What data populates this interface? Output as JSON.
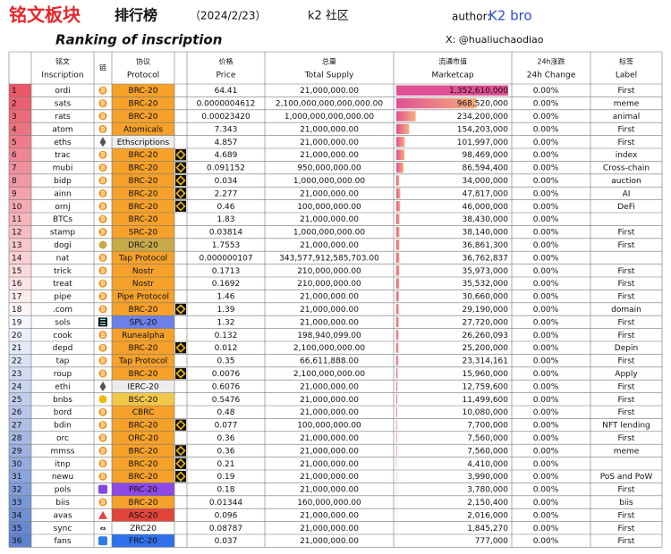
{
  "header": {
    "title": "铭文板块",
    "subtitle": "排行榜",
    "date": "（2024/2/23）",
    "community": "k2 社区",
    "author_label": "author:",
    "author": "K2 bro",
    "heading": "Ranking of inscription",
    "x": "X: @hualiuchaodiao"
  },
  "table": {
    "headers": [
      [
        "铭文",
        "Inscription"
      ],
      [
        "链"
      ],
      [
        "协议",
        "Protocol"
      ],
      [
        "价格",
        "Price"
      ],
      [
        "总量",
        "Total Supply"
      ],
      [
        "流通市值",
        "Marketcap"
      ],
      [
        "24h涨跌",
        "24h Change"
      ],
      [
        "标签",
        "Label"
      ]
    ],
    "rows": [
      [
        1,
        "ordi",
        "BRC-20",
        "64.41",
        "21,000,000.00",
        "1,352,610,000",
        "0.00%",
        "First"
      ],
      [
        2,
        "sats",
        "BRC-20",
        "0.0000004612",
        "2,100,000,000,000,000.00",
        "968,520,000",
        "0.00%",
        "meme"
      ],
      [
        3,
        "rats",
        "BRC-20",
        "0.00023420",
        "1,000,000,000,000.00",
        "234,200,000",
        "0.00%",
        "animal"
      ],
      [
        4,
        "atom",
        "Atomicals",
        "7.343",
        "21,000,000.00",
        "154,203,000",
        "0.00%",
        "First"
      ],
      [
        5,
        "eths",
        "Ethscriptions",
        "4.857",
        "21,000,000.00",
        "101,997,000",
        "0.00%",
        "First"
      ],
      [
        6,
        "trac",
        "BRC-20",
        "4.689",
        "21,000,000.00",
        "98,469,000",
        "0.00%",
        "index"
      ],
      [
        7,
        "mubi",
        "BRC-20",
        "0.091152",
        "950,000,000.00",
        "86,594,400",
        "0.00%",
        "Cross-chain"
      ],
      [
        8,
        "bidp",
        "BRC-20",
        "0.034",
        "1,000,000,000.00",
        "34,000,000",
        "0.00%",
        "auction"
      ],
      [
        9,
        "ainn",
        "BRC-20",
        "2.277",
        "21,000,000.00",
        "47,817,000",
        "0.00%",
        "AI"
      ],
      [
        10,
        "ornj",
        "BRC-20",
        "0.46",
        "100,000,000.00",
        "46,000,000",
        "0.00%",
        "DeFi"
      ],
      [
        11,
        "BTCs",
        "BRC-20",
        "1.83",
        "21,000,000.00",
        "38,430,000",
        "0.00%",
        null
      ],
      [
        12,
        "stamp",
        "SRC-20",
        "0.03814",
        "1,000,000,000.00",
        "38,140,000",
        "0.00%",
        "First"
      ],
      [
        13,
        "dogi",
        "DRC-20",
        "1.7553",
        "21,000,000.00",
        "36,861,300",
        "0.00%",
        "First"
      ],
      [
        14,
        "nat",
        "Tap Protocol",
        "0.000000107",
        "343,577,912,585,703.00",
        "36,762,837",
        "0.00%",
        null
      ],
      [
        15,
        "trick",
        "Nostr",
        "0.1713",
        "210,000,000.00",
        "35,973,000",
        "0.00%",
        "First"
      ],
      [
        16,
        "treat",
        "Nostr",
        "0.1692",
        "210,000,000.00",
        "35,532,000",
        "0.00%",
        "First"
      ],
      [
        17,
        "pipe",
        "Pipe Protocol",
        "1.46",
        "21,000,000.00",
        "30,660,000",
        "0.00%",
        "First"
      ],
      [
        18,
        ".com",
        "BRC-20",
        "1.39",
        "21,000,000.00",
        "29,190,000",
        "0.00%",
        "domain"
      ],
      [
        19,
        "sols",
        "SPL-20",
        "1.32",
        "21,000,000.00",
        "27,720,000",
        "0.00%",
        "First"
      ],
      [
        20,
        "cook",
        "Runealpha",
        "0.132",
        "198,940,099.00",
        "26,260,093",
        "0.00%",
        "First"
      ],
      [
        21,
        "depd",
        "BRC-20",
        "0.012",
        "2,100,000,000.00",
        "25,200,000",
        "0.00%",
        "Depin"
      ],
      [
        22,
        "tap",
        "Tap Protocol",
        "0.35",
        "66,611,888.00",
        "23,314,161",
        "0.00%",
        "First"
      ],
      [
        23,
        "roup",
        "BRC-20",
        "0.0076",
        "2,100,000,000.00",
        "15,960,000",
        "0.00%",
        "Apply"
      ],
      [
        24,
        "ethi",
        "IERC-20",
        "0.6076",
        "21,000,000.00",
        "12,759,600",
        "0.00%",
        "First"
      ],
      [
        25,
        "bnbs",
        "BSC-20",
        "0.5476",
        "21,000,000.00",
        "11,499,600",
        "0.00%",
        "First"
      ],
      [
        26,
        "bord",
        "CBRC",
        "0.48",
        "21,000,000.00",
        "10,080,000",
        "0.00%",
        "First"
      ],
      [
        27,
        "bdin",
        "BRC-20",
        "0.077",
        "100,000,000.00",
        "7,700,000",
        "0.00%",
        "NFT lending"
      ],
      [
        28,
        "orc",
        "ORC-20",
        "0.36",
        "21,000,000.00",
        "7,560,000",
        "0.00%",
        "First"
      ],
      [
        29,
        "mmss",
        "BRC-20",
        "0.36",
        "21,000,000.00",
        "7,560,000",
        "0.00%",
        "meme"
      ],
      [
        30,
        "itnp",
        "BRC-20",
        "0.21",
        "21,000,000.00",
        "4,410,000",
        "0.00%",
        null
      ],
      [
        31,
        "newu",
        "BRC-20",
        "0.19",
        "21,000,000.00",
        "3,990,000",
        "0.00%",
        "PoS and PoW"
      ],
      [
        32,
        "pols",
        "PRC-20",
        "0.18",
        "21,000,000.00",
        "3,780,000",
        "0.00%",
        "First"
      ],
      [
        33,
        "biis",
        "BRC-20",
        "0.01344",
        "160,000,000.00",
        "2,150,400",
        "0.00%",
        "biis"
      ],
      [
        34,
        "avas",
        "ASC-20",
        "0.096",
        "21,000,000.00",
        "2,016,000",
        "0.00%",
        "First"
      ],
      [
        35,
        "sync",
        "ZRC20",
        "0.08787",
        "21,000,000.00",
        "1,845,270",
        "0.00%",
        "First"
      ],
      [
        36,
        "fans",
        "FRC-20",
        "0.037",
        "21,000,000.00",
        "777,000",
        "0.00%",
        "First"
      ]
    ]
  }
}
